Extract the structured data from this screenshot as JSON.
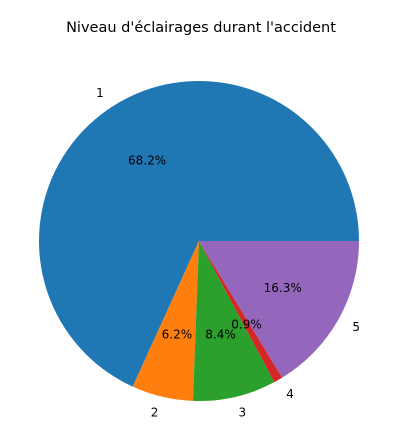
{
  "chart_data": {
    "type": "pie",
    "title": "Niveau d'éclairages durant l'accident",
    "categories": [
      "1",
      "2",
      "3",
      "4",
      "5"
    ],
    "values": [
      68.2,
      6.2,
      8.4,
      0.9,
      16.3
    ],
    "value_labels": [
      "68.2%",
      "6.2%",
      "8.4%",
      "0.9%",
      "16.3%"
    ],
    "colors": [
      "#1f77b4",
      "#ff7f0e",
      "#2ca02c",
      "#d62728",
      "#9467bd"
    ],
    "start_angle_deg": 0,
    "direction": "counterclockwise",
    "legend": "none"
  }
}
